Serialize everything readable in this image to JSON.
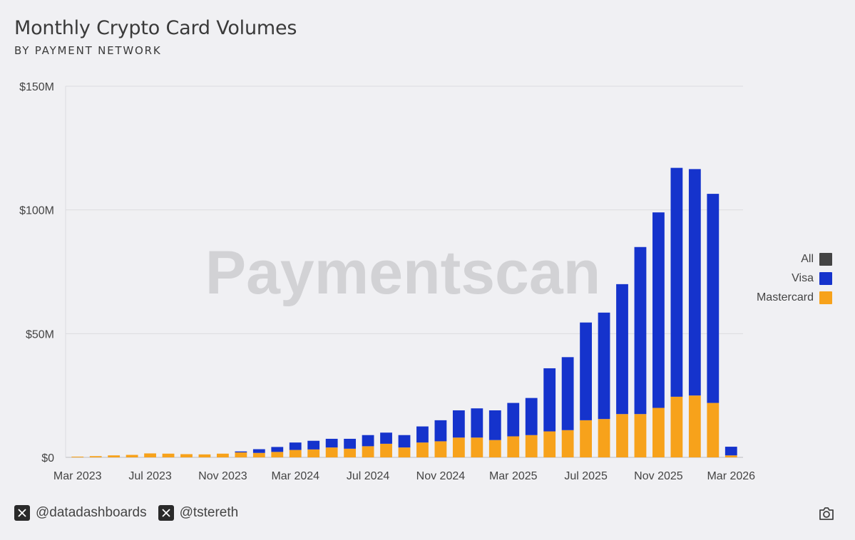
{
  "header": {
    "title": "Monthly Crypto Card Volumes",
    "subtitle": "BY PAYMENT NETWORK"
  },
  "watermark": "Paymentscan",
  "legend": [
    {
      "label": "All",
      "color": "#444444"
    },
    {
      "label": "Visa",
      "color": "#1533cc"
    },
    {
      "label": "Mastercard",
      "color": "#f7a21b"
    }
  ],
  "footer": {
    "handles": [
      "@datadashboards",
      "@tstereth"
    ]
  },
  "chart_data": {
    "type": "bar",
    "stacked": true,
    "title": "Monthly Crypto Card Volumes",
    "subtitle": "BY PAYMENT NETWORK",
    "xlabel": "",
    "ylabel": "",
    "ylim": [
      0,
      150
    ],
    "y_unit": "$M",
    "y_ticks": [
      "$0",
      "$50M",
      "$100M",
      "$150M"
    ],
    "y_tick_values": [
      0,
      50,
      100,
      150
    ],
    "x_tick_labels": [
      "Mar 2023",
      "Jul 2023",
      "Nov 2023",
      "Mar 2024",
      "Jul 2024",
      "Nov 2024",
      "Mar 2025",
      "Jul 2025",
      "Nov 2025",
      "Mar 2026"
    ],
    "grid": true,
    "legend_position": "right",
    "categories": [
      "Mar 2023",
      "Apr 2023",
      "May 2023",
      "Jun 2023",
      "Jul 2023",
      "Aug 2023",
      "Sep 2023",
      "Oct 2023",
      "Nov 2023",
      "Dec 2023",
      "Jan 2024",
      "Feb 2024",
      "Mar 2024",
      "Apr 2024",
      "May 2024",
      "Jun 2024",
      "Jul 2024",
      "Aug 2024",
      "Sep 2024",
      "Oct 2024",
      "Nov 2024",
      "Dec 2024",
      "Jan 2025",
      "Feb 2025",
      "Mar 2025",
      "Apr 2025",
      "May 2025",
      "Jun 2025",
      "Jul 2025",
      "Aug 2025",
      "Sep 2025",
      "Oct 2025",
      "Nov 2025",
      "Dec 2025",
      "Jan 2026",
      "Feb 2026",
      "Mar 2026"
    ],
    "series": [
      {
        "name": "Mastercard",
        "color": "#f7a21b",
        "values": [
          0.3,
          0.5,
          0.8,
          1.0,
          1.6,
          1.5,
          1.3,
          1.2,
          1.5,
          2.0,
          1.8,
          2.2,
          3.0,
          3.2,
          4.0,
          3.5,
          4.5,
          5.5,
          4.0,
          6.0,
          6.5,
          8.0,
          8.0,
          7.0,
          8.5,
          9.0,
          10.5,
          11.0,
          15.0,
          15.5,
          17.5,
          17.5,
          20.0,
          24.5,
          25.0,
          22.0,
          0.8
        ]
      },
      {
        "name": "Visa",
        "color": "#1533cc",
        "values": [
          0,
          0,
          0,
          0,
          0,
          0,
          0,
          0,
          0,
          0.4,
          1.5,
          2.0,
          3.0,
          3.5,
          3.5,
          4.0,
          4.5,
          4.5,
          5.0,
          6.5,
          8.5,
          11.0,
          11.8,
          12.0,
          13.5,
          15.0,
          25.5,
          29.5,
          39.5,
          43.0,
          52.5,
          67.5,
          79.0,
          92.5,
          91.5,
          84.5,
          3.5
        ]
      }
    ]
  }
}
